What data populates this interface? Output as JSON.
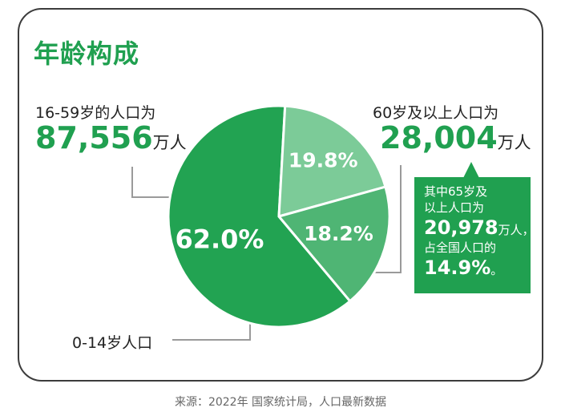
{
  "title": "年龄构成",
  "labels": {
    "adult": {
      "caption": "16-59岁的人口为",
      "number": "87,556",
      "unit": "万人"
    },
    "senior": {
      "caption": "60岁及以上人口为",
      "number": "28,004",
      "unit": "万人"
    },
    "child": {
      "caption": "0-14岁人口"
    }
  },
  "callout": {
    "line1": "其中65岁及",
    "line2": "以上人口为",
    "number": "20,978",
    "unit": "万人，",
    "line4": "占全国人口的",
    "percent": "14.9%",
    "percent_suffix": "。"
  },
  "source": "来源：2022年 国家统计局，人口最新数据",
  "chart_data": {
    "type": "pie",
    "title": "年龄构成",
    "slices": [
      {
        "label": "16-59岁",
        "value": 62.0,
        "display": "62.0%",
        "color": "#22a352"
      },
      {
        "label": "60岁及以上",
        "value": 19.8,
        "display": "19.8%",
        "color": "#7ccb98"
      },
      {
        "label": "0-14岁",
        "value": 18.2,
        "display": "18.2%",
        "color": "#4fb574"
      }
    ]
  }
}
